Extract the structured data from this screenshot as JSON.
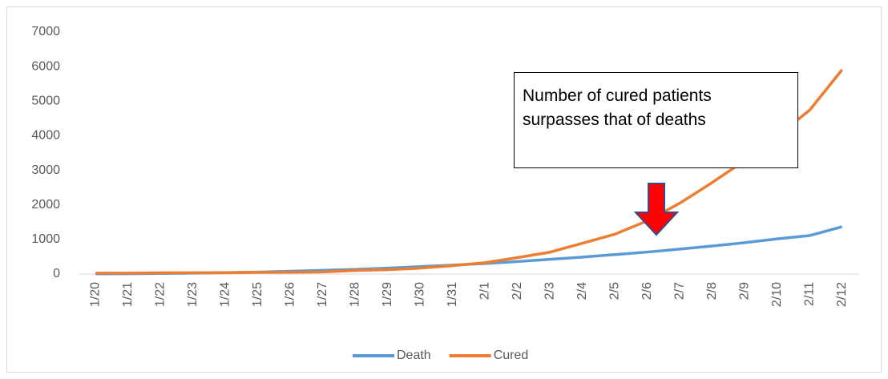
{
  "chart_data": {
    "type": "line",
    "annotation": "Number of cured patients surpasses that of deaths",
    "categories": [
      "1/20",
      "1/21",
      "1/22",
      "1/23",
      "1/24",
      "1/25",
      "1/26",
      "1/27",
      "1/28",
      "1/29",
      "1/30",
      "1/31",
      "2/1",
      "2/2",
      "2/3",
      "2/4",
      "2/5",
      "2/6",
      "2/7",
      "2/8",
      "2/9",
      "2/10",
      "2/11",
      "2/12"
    ],
    "series": [
      {
        "name": "Death",
        "color": "#5b9bd5",
        "values": [
          6,
          9,
          17,
          25,
          41,
          56,
          80,
          106,
          132,
          170,
          213,
          259,
          304,
          361,
          425,
          490,
          563,
          636,
          722,
          811,
          908,
          1016,
          1113,
          1368
        ]
      },
      {
        "name": "Cured",
        "color": "#ed7d31",
        "values": [
          25,
          25,
          34,
          38,
          39,
          49,
          51,
          60,
          103,
          124,
          171,
          243,
          328,
          475,
          632,
          892,
          1153,
          1540,
          2050,
          2649,
          3281,
          3996,
          4740,
          5911
        ]
      }
    ],
    "ylim": [
      0,
      7000
    ],
    "yticks": [
      0,
      1000,
      2000,
      3000,
      4000,
      5000,
      6000,
      7000
    ],
    "grid": false,
    "legend": "bottom"
  }
}
